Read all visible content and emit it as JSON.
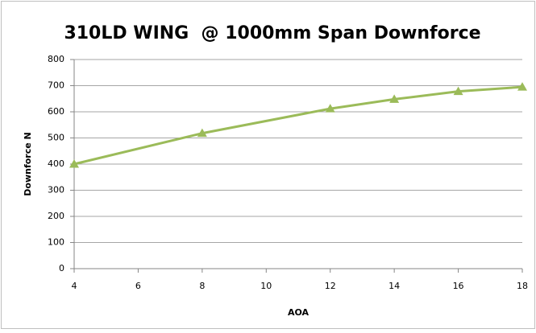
{
  "chart_data": {
    "type": "line",
    "title": "310LD WING  @ 1000mm Span Downforce",
    "x_label": "AOA",
    "y_label": "Downforce N",
    "x": [
      4,
      8,
      12,
      14,
      16,
      18
    ],
    "series": [
      {
        "name": "Downforce",
        "color": "#9bbb59",
        "values": [
          400,
          518,
          612,
          648,
          678,
          695
        ]
      }
    ],
    "xlim": [
      4,
      18
    ],
    "xticks": [
      4,
      6,
      8,
      10,
      12,
      14,
      16,
      18
    ],
    "ylim": [
      0,
      800
    ],
    "yticks": [
      0,
      100,
      200,
      300,
      400,
      500,
      600,
      700,
      800
    ],
    "grid": true
  }
}
